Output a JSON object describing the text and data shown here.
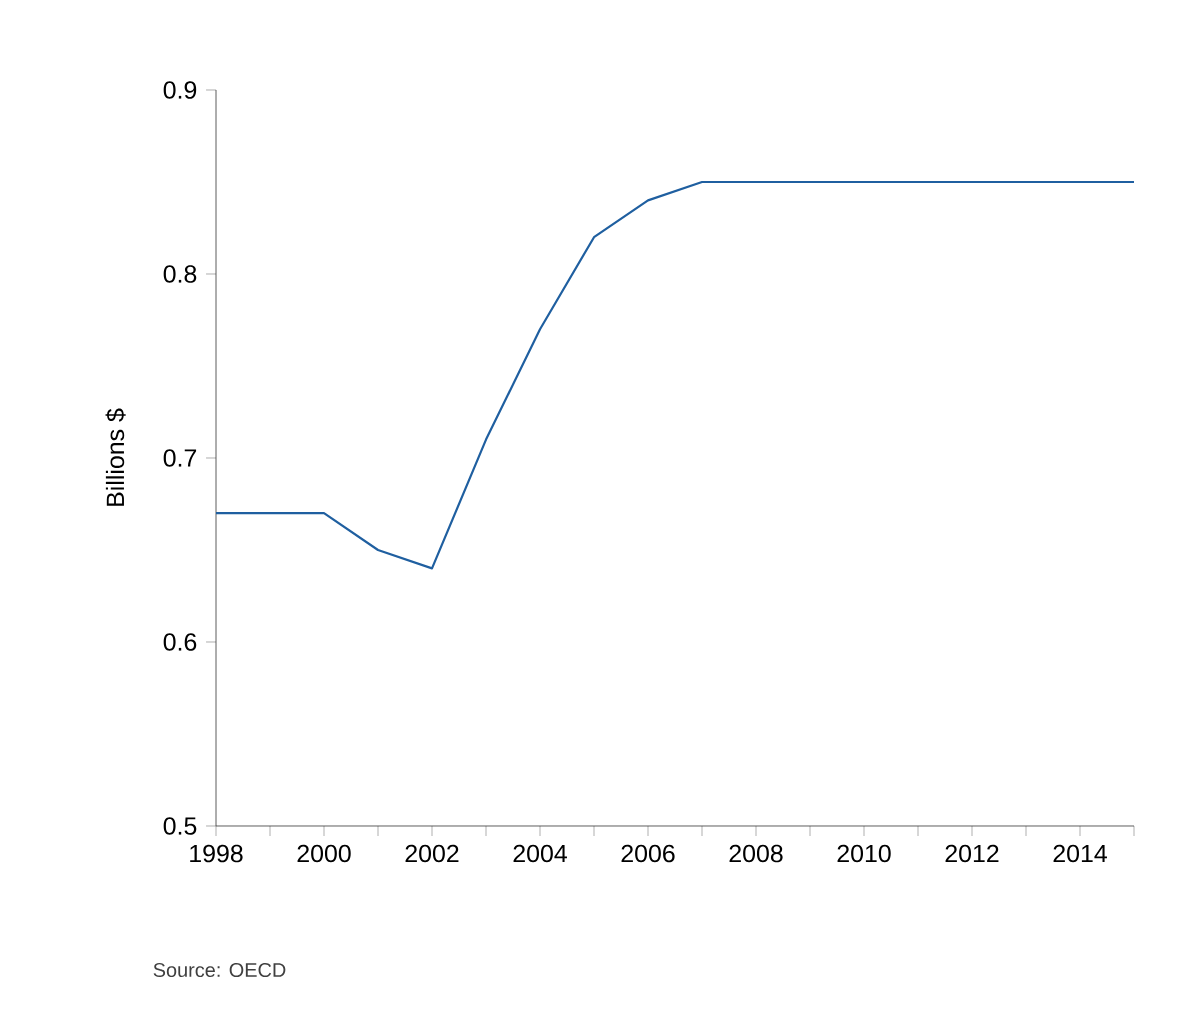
{
  "chart_data": {
    "type": "line",
    "ylabel": "Billions $",
    "annotations": [
      "Source: OECD"
    ],
    "x": [
      1998,
      1999,
      2000,
      2001,
      2002,
      2003,
      2004,
      2005,
      2006,
      2007,
      2008,
      2009,
      2010,
      2011,
      2012,
      2013,
      2014,
      2015
    ],
    "series": [
      {
        "color": "#1f5fa0",
        "values": [
          0.67,
          0.67,
          0.67,
          0.65,
          0.64,
          0.71,
          0.77,
          0.82,
          0.84,
          0.85,
          0.85,
          0.85,
          0.85,
          0.85,
          0.85,
          0.85,
          0.85,
          0.85
        ]
      }
    ],
    "xlim": [
      1998,
      2015
    ],
    "xticks": [
      1998,
      {
        "value": 1999,
        "label": null
      },
      2000,
      {
        "value": 2001,
        "label": null
      },
      2002,
      {
        "value": 2003,
        "label": null
      },
      2004,
      {
        "value": 2005,
        "label": null
      },
      2006,
      {
        "value": 2007,
        "label": null
      },
      2008,
      {
        "value": 2009,
        "label": null
      },
      2010,
      {
        "value": 2011,
        "label": null
      },
      2012,
      {
        "value": 2013,
        "label": null
      },
      2014,
      {
        "value": 2015,
        "label": null
      }
    ],
    "ylim": [
      0.5,
      0.9
    ],
    "yticks": [
      0.5,
      0.6,
      0.7,
      0.8,
      0.9
    ],
    "grid": false,
    "marker": "none",
    "line_style": "solid"
  }
}
